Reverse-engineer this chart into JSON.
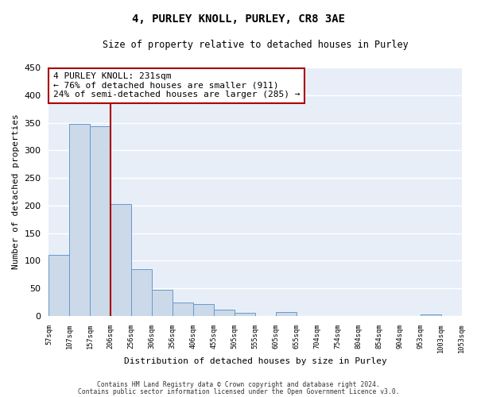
{
  "title": "4, PURLEY KNOLL, PURLEY, CR8 3AE",
  "subtitle": "Size of property relative to detached houses in Purley",
  "xlabel": "Distribution of detached houses by size in Purley",
  "ylabel": "Number of detached properties",
  "bar_color": "#ccd9e8",
  "bar_edge_color": "#6699cc",
  "bar_values": [
    110,
    348,
    343,
    203,
    85,
    47,
    25,
    22,
    12,
    5,
    0,
    7,
    0,
    0,
    0,
    0,
    0,
    0,
    3,
    0
  ],
  "bin_labels": [
    "57sqm",
    "107sqm",
    "157sqm",
    "206sqm",
    "256sqm",
    "306sqm",
    "356sqm",
    "406sqm",
    "455sqm",
    "505sqm",
    "555sqm",
    "605sqm",
    "655sqm",
    "704sqm",
    "754sqm",
    "804sqm",
    "854sqm",
    "904sqm",
    "953sqm",
    "1003sqm",
    "1053sqm"
  ],
  "ylim": [
    0,
    450
  ],
  "yticks": [
    0,
    50,
    100,
    150,
    200,
    250,
    300,
    350,
    400,
    450
  ],
  "property_line_x": 3,
  "property_line_color": "#aa0000",
  "annotation_text": "4 PURLEY KNOLL: 231sqm\n← 76% of detached houses are smaller (911)\n24% of semi-detached houses are larger (285) →",
  "annotation_box_color": "#ffffff",
  "annotation_box_edge": "#aa0000",
  "footer_line1": "Contains HM Land Registry data © Crown copyright and database right 2024.",
  "footer_line2": "Contains public sector information licensed under the Open Government Licence v3.0.",
  "background_color": "#e8eef8",
  "grid_color": "#ffffff",
  "fig_bg_color": "#ffffff"
}
